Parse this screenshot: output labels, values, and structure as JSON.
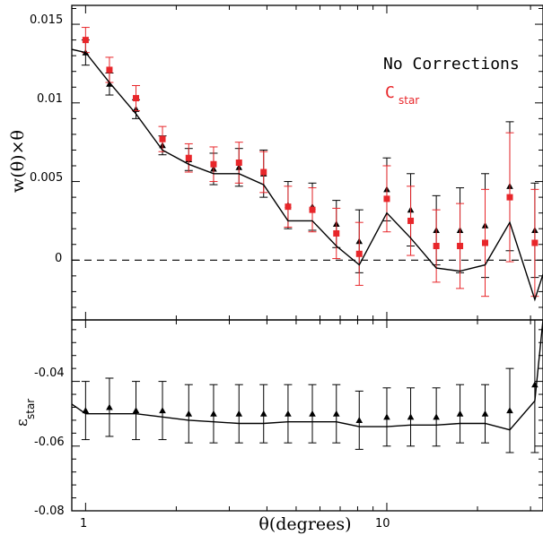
{
  "chart_data": [
    {
      "type": "scatter",
      "panel": "top",
      "xscale": "log",
      "xlim": [
        0.9,
        33
      ],
      "ylim": [
        -0.0038,
        0.0162
      ],
      "ylabel": "w(θ)×θ",
      "yticks": [
        0,
        0.005,
        0.01,
        0.015
      ],
      "ytick_labels": [
        "0",
        "0.005",
        "0.01",
        "0.015"
      ],
      "reference_line": {
        "y": 0,
        "style": "dashed"
      },
      "legend": {
        "placement": "top-right",
        "entries": [
          "No Corrections",
          "C",
          "star"
        ],
        "colors": [
          "#000000",
          "#e8262a"
        ]
      },
      "series": [
        {
          "name": "No Corrections",
          "color": "#000000",
          "marker": "triangle",
          "x": [
            1.0,
            1.2,
            1.47,
            1.8,
            2.2,
            2.66,
            3.23,
            3.9,
            4.7,
            5.66,
            6.8,
            8.1,
            10.0,
            12.0,
            14.6,
            17.5,
            21.2,
            25.6,
            31.0
          ],
          "y": [
            0.0132,
            0.0112,
            0.0096,
            0.0073,
            0.0064,
            0.0058,
            0.0059,
            0.0055,
            0.0035,
            0.0034,
            0.0023,
            0.0012,
            0.0045,
            0.0032,
            0.0019,
            0.0019,
            0.0022,
            0.0047,
            0.0019
          ],
          "err": [
            0.0008,
            0.0007,
            0.0006,
            0.0006,
            0.0007,
            0.001,
            0.0012,
            0.0015,
            0.0015,
            0.0015,
            0.0015,
            0.002,
            0.002,
            0.0023,
            0.0022,
            0.0027,
            0.0033,
            0.0041,
            0.003
          ]
        },
        {
          "name": "C star",
          "color": "#e8262a",
          "marker": "square",
          "x": [
            1.0,
            1.2,
            1.47,
            1.8,
            2.2,
            2.66,
            3.23,
            3.9,
            4.7,
            5.66,
            6.8,
            8.1,
            10.0,
            12.0,
            14.6,
            17.5,
            21.2,
            25.6,
            31.0
          ],
          "y": [
            0.014,
            0.0121,
            0.0103,
            0.0077,
            0.0065,
            0.0061,
            0.0062,
            0.0056,
            0.0034,
            0.0032,
            0.0017,
            0.0004,
            0.0039,
            0.0025,
            0.0009,
            0.0009,
            0.0011,
            0.004,
            0.0011
          ],
          "err": [
            0.0008,
            0.0008,
            0.0008,
            0.0008,
            0.0009,
            0.0011,
            0.0013,
            0.0013,
            0.0013,
            0.0014,
            0.0016,
            0.002,
            0.0021,
            0.0022,
            0.0023,
            0.0027,
            0.0034,
            0.0041,
            0.0034
          ]
        },
        {
          "name": "line",
          "color": "#000000",
          "marker": "none",
          "x": [
            0.9,
            1.0,
            1.2,
            1.47,
            1.8,
            2.2,
            2.66,
            3.23,
            3.9,
            4.7,
            5.66,
            6.8,
            8.1,
            10.0,
            12.0,
            14.6,
            17.5,
            21.2,
            25.6,
            31.0,
            33.0
          ],
          "y": [
            0.0134,
            0.0132,
            0.0113,
            0.0093,
            0.007,
            0.0061,
            0.0055,
            0.0055,
            0.0048,
            0.0025,
            0.0025,
            0.0009,
            -0.0003,
            0.003,
            0.0014,
            -0.0005,
            -0.0007,
            -0.0003,
            0.0024,
            -0.0025,
            -0.0009
          ]
        }
      ]
    },
    {
      "type": "scatter",
      "panel": "bottom",
      "xscale": "log",
      "xlim": [
        0.9,
        33
      ],
      "ylim": [
        -0.08,
        -0.021
      ],
      "ylabel": "ε",
      "ylabel_sub": "star",
      "xlabel": "θ(degrees)",
      "xticks": [
        1,
        10
      ],
      "xtick_labels": [
        "1",
        "10"
      ],
      "yticks": [
        -0.08,
        -0.06,
        -0.04
      ],
      "ytick_labels": [
        "-0.08",
        "-0.06",
        "-0.04"
      ],
      "series": [
        {
          "name": "epsilon",
          "color": "#000000",
          "marker": "triangle",
          "x": [
            1.0,
            1.2,
            1.47,
            1.8,
            2.2,
            2.66,
            3.23,
            3.9,
            4.7,
            5.66,
            6.8,
            8.1,
            10.0,
            12.0,
            14.6,
            17.5,
            21.2,
            25.6,
            31.0
          ],
          "y": [
            -0.049,
            -0.048,
            -0.049,
            -0.049,
            -0.05,
            -0.05,
            -0.05,
            -0.05,
            -0.05,
            -0.05,
            -0.05,
            -0.052,
            -0.051,
            -0.051,
            -0.051,
            -0.05,
            -0.05,
            -0.049,
            -0.041
          ],
          "err": [
            0.009,
            0.009,
            0.009,
            0.009,
            0.009,
            0.009,
            0.009,
            0.009,
            0.009,
            0.009,
            0.009,
            0.009,
            0.009,
            0.009,
            0.009,
            0.009,
            0.009,
            0.013,
            0.021
          ]
        },
        {
          "name": "line",
          "color": "#000000",
          "marker": "none",
          "x": [
            0.9,
            1.0,
            1.2,
            1.47,
            1.8,
            2.2,
            2.66,
            3.23,
            3.9,
            4.7,
            5.66,
            6.8,
            8.1,
            10.0,
            12.0,
            14.6,
            17.5,
            21.2,
            25.6,
            31.0,
            33.0
          ],
          "y": [
            -0.047,
            -0.05,
            -0.05,
            -0.05,
            -0.051,
            -0.052,
            -0.0525,
            -0.053,
            -0.053,
            -0.0525,
            -0.0525,
            -0.0525,
            -0.054,
            -0.054,
            -0.0535,
            -0.0535,
            -0.053,
            -0.053,
            -0.055,
            -0.046,
            -0.021
          ]
        }
      ]
    }
  ]
}
